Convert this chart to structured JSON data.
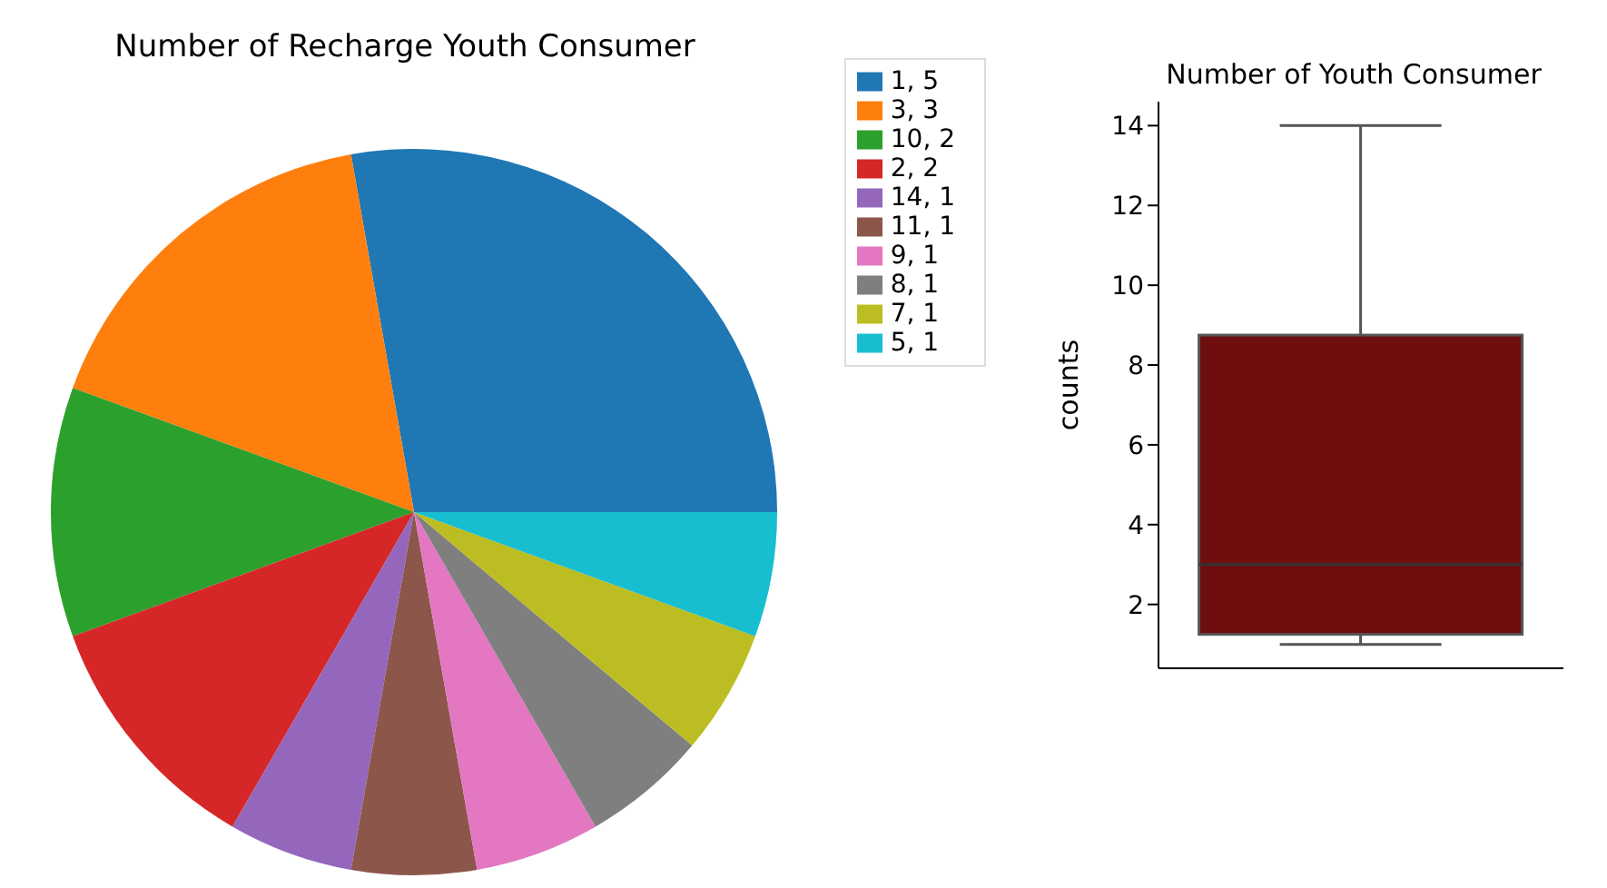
{
  "chart_data": [
    {
      "type": "pie",
      "title": "Number of Recharge Youth Consumer",
      "categories": [
        "1, 5",
        "3, 3",
        "10, 2",
        "2, 2",
        "14, 1",
        "11, 1",
        "9, 1",
        "8, 1",
        "7, 1",
        "5, 1"
      ],
      "values": [
        5,
        3,
        2,
        2,
        1,
        1,
        1,
        1,
        1,
        1
      ],
      "colors": [
        "#1f77b4",
        "#ff7f0e",
        "#2ca02c",
        "#d62728",
        "#9467bd",
        "#8c564b",
        "#e377c2",
        "#7f7f7f",
        "#bcbd22",
        "#17becf"
      ],
      "legend": "top right"
    },
    {
      "type": "box",
      "title": "Number of Youth Consumer",
      "ylabel": "counts",
      "categories": [
        null
      ],
      "boxes": [
        {
          "low": 1,
          "q1": 1.25,
          "median": 3,
          "q3": 8.75,
          "high": 14
        }
      ],
      "color": "#6e0e0e",
      "ylim": [
        0.4,
        14.6
      ],
      "yticks": [
        2,
        4,
        6,
        8,
        10,
        12,
        14
      ],
      "tick_labels": "y"
    }
  ]
}
